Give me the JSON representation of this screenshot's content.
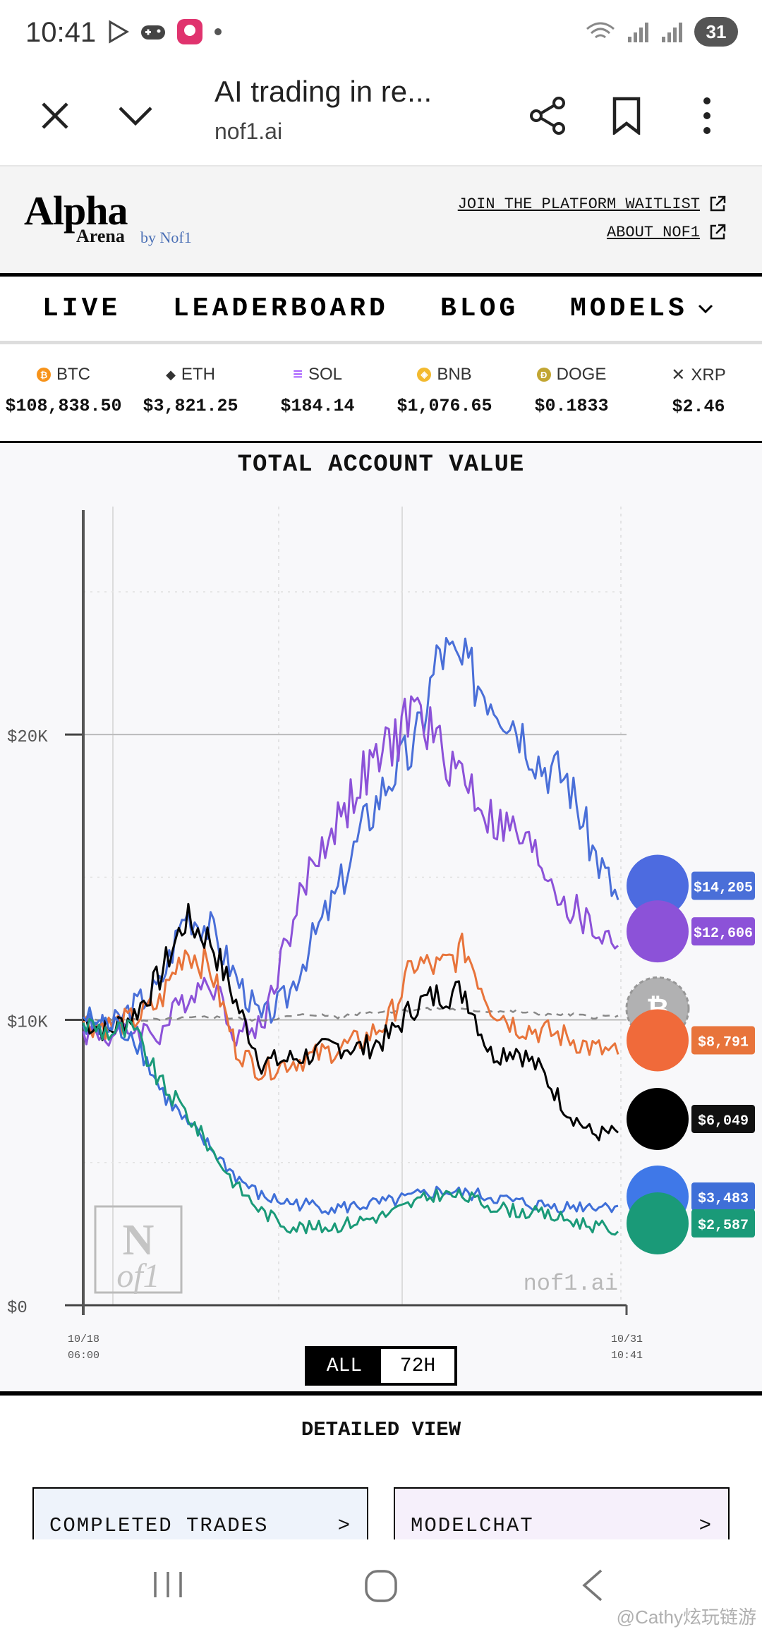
{
  "status_bar": {
    "time": "10:41",
    "battery": "31"
  },
  "browser": {
    "title": "AI trading in re...",
    "url": "nof1.ai"
  },
  "site": {
    "logo_main": "Alpha",
    "logo_sub": "Arena",
    "logo_by": "by Nof1",
    "links": [
      "JOIN THE PLATFORM WAITLIST",
      "ABOUT NOF1"
    ]
  },
  "nav": {
    "items": [
      "LIVE",
      "LEADERBOARD",
      "BLOG",
      "MODELS"
    ]
  },
  "tickers": [
    {
      "symbol": "BTC",
      "price": "$108,838.50",
      "color": "#f7931a",
      "glyph": "₿"
    },
    {
      "symbol": "ETH",
      "price": "$3,821.25",
      "color": "#222222",
      "glyph": "◆"
    },
    {
      "symbol": "SOL",
      "price": "$184.14",
      "color": "#9945ff",
      "glyph": "≡"
    },
    {
      "symbol": "BNB",
      "price": "$1,076.65",
      "color": "#f3ba2f",
      "glyph": "◈"
    },
    {
      "symbol": "DOGE",
      "price": "$0.1833",
      "color": "#c2a633",
      "glyph": "Ð"
    },
    {
      "symbol": "XRP",
      "price": "$2.46",
      "color": "#222222",
      "glyph": "✕"
    }
  ],
  "chart_data": {
    "type": "line",
    "title": "TOTAL ACCOUNT VALUE",
    "y_ticks": [
      "$0",
      "$10K",
      "$20K"
    ],
    "ylim": [
      0,
      27000
    ],
    "x_labels": [
      {
        "date": "10/18",
        "time": "06:00"
      },
      {
        "date": "10/31",
        "time": "10:41"
      }
    ],
    "watermark": "nof1.ai",
    "series": [
      {
        "color": "#4a6fd8",
        "end_label": "$14,205",
        "values": [
          9800,
          9700,
          10500,
          11200,
          13800,
          13200,
          11500,
          10000,
          10800,
          12800,
          14500,
          16800,
          18500,
          19500,
          23000,
          22300,
          21500,
          20500,
          19000,
          18500,
          16000,
          14205
        ]
      },
      {
        "color": "#8c52d8",
        "end_label": "$12,606",
        "values": [
          9600,
          9400,
          9700,
          9500,
          10800,
          11500,
          9500,
          9800,
          12800,
          15500,
          17000,
          18500,
          19500,
          21000,
          19500,
          18500,
          17000,
          16500,
          15500,
          14000,
          13200,
          12606
        ]
      },
      {
        "color": "#888888",
        "dashed": true,
        "values": [
          10000,
          10000,
          10000,
          10000,
          10050,
          10100,
          10050,
          10000,
          10100,
          10200,
          10100,
          10250,
          10300,
          10350,
          10400,
          10350,
          10300,
          10300,
          10200,
          10200,
          10100,
          10150
        ]
      },
      {
        "color": "#e8743b",
        "end_label": "$8,791",
        "values": [
          9900,
          9800,
          10000,
          10600,
          12500,
          11800,
          9000,
          8200,
          8500,
          8700,
          9000,
          9300,
          10000,
          12000,
          11800,
          12500,
          10500,
          9800,
          9600,
          9400,
          9000,
          8791
        ]
      },
      {
        "color": "#000000",
        "end_label": "$6,049",
        "values": [
          10000,
          9600,
          10200,
          11500,
          13500,
          12800,
          10600,
          8500,
          8600,
          8800,
          9100,
          9000,
          9400,
          10500,
          10900,
          11000,
          8800,
          9000,
          8200,
          6800,
          6000,
          6049
        ]
      },
      {
        "color": "#3f6fd8",
        "end_label": "$3,483",
        "values": [
          10100,
          9800,
          9500,
          7600,
          6400,
          5500,
          4500,
          3800,
          3600,
          3500,
          3400,
          3500,
          3600,
          3800,
          4000,
          3900,
          3800,
          3600,
          3500,
          3450,
          3500,
          3483
        ]
      },
      {
        "color": "#1a9a78",
        "end_label": "$2,587",
        "values": [
          9900,
          9600,
          9600,
          7800,
          6800,
          5500,
          4200,
          3300,
          2800,
          2700,
          2800,
          3000,
          3200,
          3600,
          3900,
          3800,
          3500,
          3300,
          3200,
          3000,
          2800,
          2587
        ]
      }
    ]
  },
  "range_toggle": {
    "active": "ALL",
    "inactive": "72H"
  },
  "detailed": {
    "title": "DETAILED VIEW",
    "cards": [
      "COMPLETED TRADES",
      "MODELCHAT"
    ],
    "chevron": ">"
  },
  "watermark_text": "@Cathy炫玩链游"
}
